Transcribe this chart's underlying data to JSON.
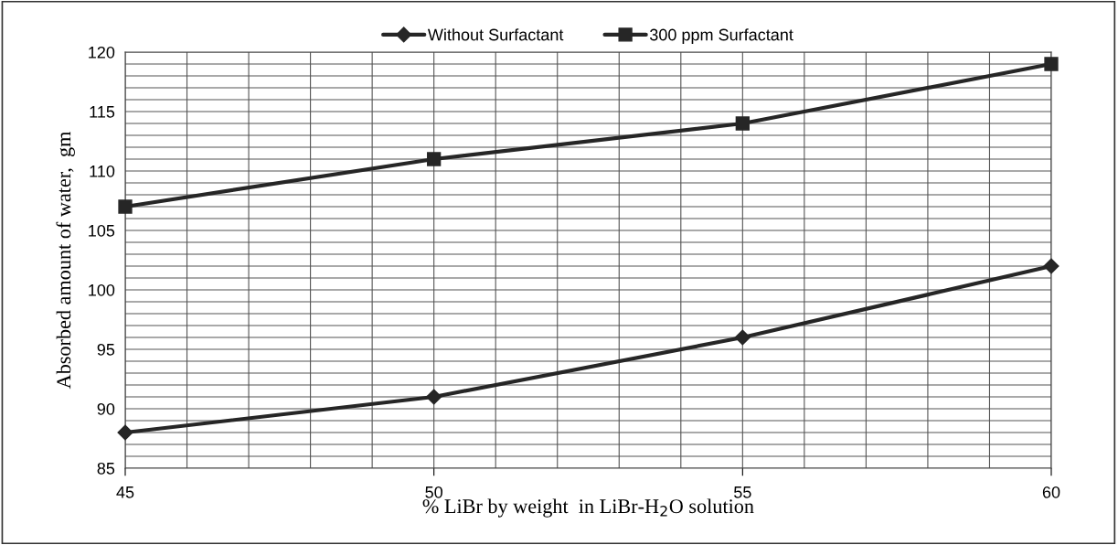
{
  "chart_data": {
    "type": "line",
    "xlabel": "% LiBr by weight  in LiBr-H$_{2}$O solution",
    "ylabel": "Absorbed amount of water,  gm",
    "x": [
      45,
      50,
      55,
      60
    ],
    "series": [
      {
        "name": "Without Surfactant",
        "color": "#262626",
        "values": [
          88,
          91,
          96,
          102
        ],
        "marker": "diamond"
      },
      {
        "name": "300 ppm Surfactant",
        "color": "#262626",
        "values": [
          107,
          111,
          114,
          119
        ],
        "marker": "square"
      }
    ],
    "xlim": [
      45,
      60
    ],
    "xticks": [
      45,
      {
        "value": 46,
        "label": null
      },
      {
        "value": 47,
        "label": null
      },
      {
        "value": 48,
        "label": null
      },
      {
        "value": 49,
        "label": null
      },
      50,
      {
        "value": 51,
        "label": null
      },
      {
        "value": 52,
        "label": null
      },
      {
        "value": 53,
        "label": null
      },
      {
        "value": 54,
        "label": null
      },
      55,
      {
        "value": 56,
        "label": null
      },
      {
        "value": 57,
        "label": null
      },
      {
        "value": 58,
        "label": null
      },
      {
        "value": 59,
        "label": null
      },
      60
    ],
    "ylim": [
      85,
      120
    ],
    "yticks": [
      85,
      {
        "value": 86,
        "label": null
      },
      {
        "value": 87,
        "label": null
      },
      {
        "value": 88,
        "label": null
      },
      {
        "value": 89,
        "label": null
      },
      90,
      {
        "value": 91,
        "label": null
      },
      {
        "value": 92,
        "label": null
      },
      {
        "value": 93,
        "label": null
      },
      {
        "value": 94,
        "label": null
      },
      95,
      {
        "value": 96,
        "label": null
      },
      {
        "value": 97,
        "label": null
      },
      {
        "value": 98,
        "label": null
      },
      {
        "value": 99,
        "label": null
      },
      100,
      {
        "value": 101,
        "label": null
      },
      {
        "value": 102,
        "label": null
      },
      {
        "value": 103,
        "label": null
      },
      {
        "value": 104,
        "label": null
      },
      105,
      {
        "value": 106,
        "label": null
      },
      {
        "value": 107,
        "label": null
      },
      {
        "value": 108,
        "label": null
      },
      {
        "value": 109,
        "label": null
      },
      110,
      {
        "value": 111,
        "label": null
      },
      {
        "value": 112,
        "label": null
      },
      {
        "value": 113,
        "label": null
      },
      {
        "value": 114,
        "label": null
      },
      115,
      {
        "value": 116,
        "label": null
      },
      {
        "value": 117,
        "label": null
      },
      {
        "value": 118,
        "label": null
      },
      {
        "value": 119,
        "label": null
      },
      120
    ],
    "grid": true,
    "legend": "top",
    "line_style": "solid"
  }
}
